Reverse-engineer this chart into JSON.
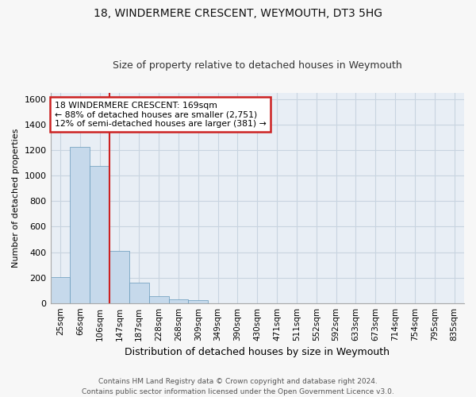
{
  "title": "18, WINDERMERE CRESCENT, WEYMOUTH, DT3 5HG",
  "subtitle": "Size of property relative to detached houses in Weymouth",
  "xlabel": "Distribution of detached houses by size in Weymouth",
  "ylabel": "Number of detached properties",
  "categories": [
    "25sqm",
    "66sqm",
    "106sqm",
    "147sqm",
    "187sqm",
    "228sqm",
    "268sqm",
    "309sqm",
    "349sqm",
    "390sqm",
    "430sqm",
    "471sqm",
    "511sqm",
    "552sqm",
    "592sqm",
    "633sqm",
    "673sqm",
    "714sqm",
    "754sqm",
    "795sqm",
    "835sqm"
  ],
  "values": [
    205,
    1225,
    1075,
    410,
    158,
    52,
    28,
    20,
    0,
    0,
    0,
    0,
    0,
    0,
    0,
    0,
    0,
    0,
    0,
    0,
    0
  ],
  "bar_color": "#c6d9eb",
  "bar_edge_color": "#6699bb",
  "vline_color": "#cc2222",
  "vline_x": 3,
  "annotation_text": "18 WINDERMERE CRESCENT: 169sqm\n← 88% of detached houses are smaller (2,751)\n12% of semi-detached houses are larger (381) →",
  "annotation_box_edgecolor": "#cc2222",
  "ylim": [
    0,
    1650
  ],
  "yticks": [
    0,
    200,
    400,
    600,
    800,
    1000,
    1200,
    1400,
    1600
  ],
  "footer_line1": "Contains HM Land Registry data © Crown copyright and database right 2024.",
  "footer_line2": "Contains public sector information licensed under the Open Government Licence v3.0.",
  "bg_color": "#f7f7f7",
  "plot_bg_color": "#e8eef5",
  "grid_color": "#c8d4e0",
  "title_fontsize": 10,
  "subtitle_fontsize": 9,
  "ylabel_fontsize": 8,
  "xlabel_fontsize": 9
}
